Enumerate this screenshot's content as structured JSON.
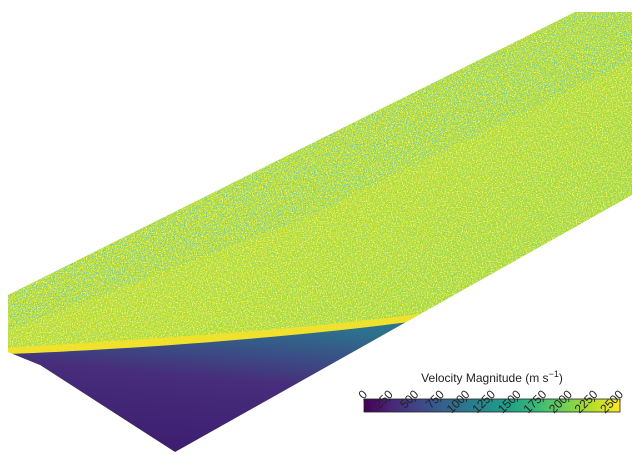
{
  "chart_data": {
    "type": "colorbar",
    "colorbar_label": [
      "Velocity Magnitude (m s",
      "−1",
      ")"
    ],
    "lim": [
      0,
      2500
    ],
    "ticks": [
      0,
      250,
      500,
      750,
      1000,
      1250,
      1500,
      1750,
      2000,
      2250,
      2500
    ],
    "colormap": [
      "#440154",
      "#482878",
      "#3e4989",
      "#31688e",
      "#26828e",
      "#1f9e89",
      "#35b779",
      "#6ece58",
      "#b5de2b",
      "#fde725"
    ]
  }
}
